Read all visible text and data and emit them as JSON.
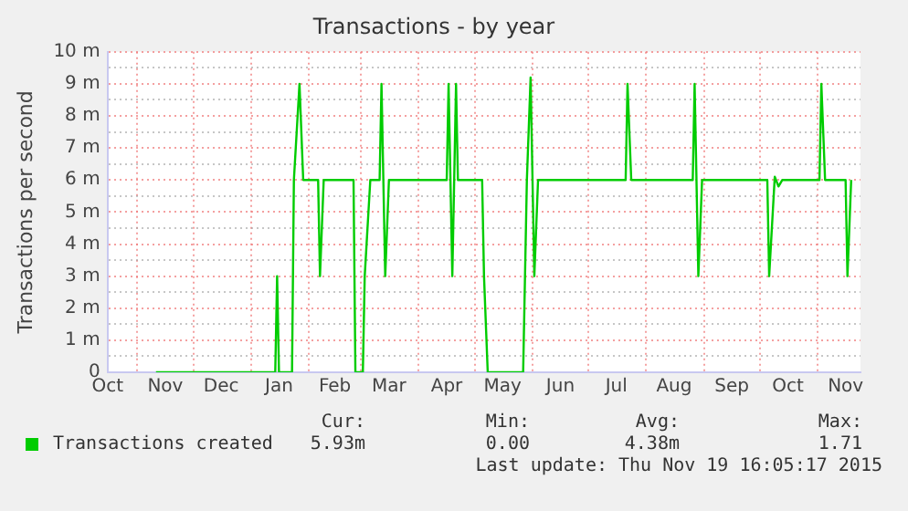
{
  "chart_data": {
    "type": "line",
    "title": "Transactions - by year",
    "ylabel": "Transactions per second",
    "xlim": [
      "2014-10-16",
      "2015-11-24"
    ],
    "xticks": [
      {
        "value": "2014-10-16",
        "label": "Oct"
      },
      {
        "value": "2014-11-01",
        "label": null
      },
      {
        "value": "2014-11-16",
        "label": "Nov"
      },
      {
        "value": "2014-12-01",
        "label": null
      },
      {
        "value": "2014-12-16",
        "label": "Dec"
      },
      {
        "value": "2015-01-01",
        "label": null
      },
      {
        "value": "2015-01-16",
        "label": "Jan"
      },
      {
        "value": "2015-02-01",
        "label": null
      },
      {
        "value": "2015-02-15",
        "label": "Feb"
      },
      {
        "value": "2015-03-01",
        "label": null
      },
      {
        "value": "2015-03-16",
        "label": "Mar"
      },
      {
        "value": "2015-04-01",
        "label": null
      },
      {
        "value": "2015-04-16",
        "label": "Apr"
      },
      {
        "value": "2015-05-01",
        "label": null
      },
      {
        "value": "2015-05-16",
        "label": "May"
      },
      {
        "value": "2015-06-01",
        "label": null
      },
      {
        "value": "2015-06-16",
        "label": "Jun"
      },
      {
        "value": "2015-07-01",
        "label": null
      },
      {
        "value": "2015-07-16",
        "label": "Jul"
      },
      {
        "value": "2015-08-01",
        "label": null
      },
      {
        "value": "2015-08-16",
        "label": "Aug"
      },
      {
        "value": "2015-09-01",
        "label": null
      },
      {
        "value": "2015-09-16",
        "label": "Sep"
      },
      {
        "value": "2015-10-01",
        "label": null
      },
      {
        "value": "2015-10-16",
        "label": "Oct"
      },
      {
        "value": "2015-11-01",
        "label": null
      },
      {
        "value": "2015-11-16",
        "label": "Nov"
      }
    ],
    "ylim": [
      0,
      10
    ],
    "yticks": [
      {
        "value": 0,
        "label": "0"
      },
      {
        "value": 0.5,
        "label": null
      },
      {
        "value": 1,
        "label": "1 m"
      },
      {
        "value": 1.5,
        "label": null
      },
      {
        "value": 2,
        "label": "2 m"
      },
      {
        "value": 2.5,
        "label": null
      },
      {
        "value": 3,
        "label": "3 m"
      },
      {
        "value": 3.5,
        "label": null
      },
      {
        "value": 4,
        "label": "4 m"
      },
      {
        "value": 4.5,
        "label": null
      },
      {
        "value": 5,
        "label": "5 m"
      },
      {
        "value": 5.5,
        "label": null
      },
      {
        "value": 6,
        "label": "6 m"
      },
      {
        "value": 6.5,
        "label": null
      },
      {
        "value": 7,
        "label": "7 m"
      },
      {
        "value": 7.5,
        "label": null
      },
      {
        "value": 8,
        "label": "8 m"
      },
      {
        "value": 8.5,
        "label": null
      },
      {
        "value": 9,
        "label": "9 m"
      },
      {
        "value": 9.5,
        "label": null
      },
      {
        "value": 10,
        "label": "10 m"
      }
    ],
    "x": [
      "2014-11-11",
      "2015-01-14",
      "2015-01-15",
      "2015-01-16",
      "2015-01-23",
      "2015-01-24",
      "2015-01-27",
      "2015-01-29",
      "2015-02-06",
      "2015-02-07",
      "2015-02-09",
      "2015-02-25",
      "2015-02-26",
      "2015-03-02",
      "2015-03-03",
      "2015-03-06",
      "2015-03-11",
      "2015-03-12",
      "2015-03-14",
      "2015-03-16",
      "2015-04-16",
      "2015-04-17",
      "2015-04-19",
      "2015-04-21",
      "2015-04-22",
      "2015-05-05",
      "2015-05-06",
      "2015-05-08",
      "2015-05-27",
      "2015-05-29",
      "2015-05-31",
      "2015-06-02",
      "2015-06-04",
      "2015-07-21",
      "2015-07-22",
      "2015-07-24",
      "2015-08-26",
      "2015-08-27",
      "2015-08-29",
      "2015-08-31",
      "2015-10-05",
      "2015-10-06",
      "2015-10-09",
      "2015-10-11",
      "2015-10-13",
      "2015-11-02",
      "2015-11-03",
      "2015-11-05",
      "2015-11-16",
      "2015-11-17",
      "2015-11-19"
    ],
    "series": [
      {
        "name": "Transactions created",
        "color": "#00cc00",
        "values": [
          0,
          0,
          3,
          0,
          0,
          6,
          9,
          6,
          6,
          3,
          6,
          6,
          0,
          0,
          3,
          6,
          6,
          9,
          3,
          6,
          6,
          9,
          3,
          9,
          6,
          6,
          3,
          0,
          0,
          6,
          9.2,
          3,
          6,
          6,
          9,
          6,
          6,
          9,
          3,
          6,
          6,
          3,
          6.1,
          5.8,
          6,
          6,
          9,
          6,
          6,
          3,
          6
        ]
      }
    ],
    "grid": true,
    "legend": "bottom",
    "marker": "none",
    "line_style": "solid",
    "annotations": [
      "Cur:",
      "5.93m",
      "Min:",
      "0.00",
      "Avg:",
      "4.38m",
      "Max:",
      "1.71",
      "Last update: Thu Nov 19 16:05:17 2015"
    ]
  }
}
